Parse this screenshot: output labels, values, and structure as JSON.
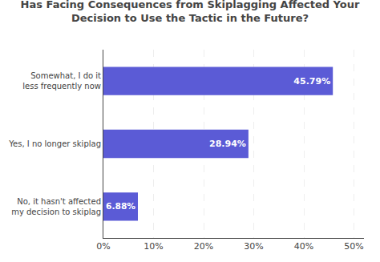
{
  "chart_data": {
    "type": "bar",
    "orientation": "horizontal",
    "title": "Has Facing Consequences from Skiplagging Affected Your\nDecision to Use the Tactic in the Future?",
    "categories": [
      "No, it hasn't affected\nmy decision to skiplag",
      "Yes, I no longer skiplag",
      "Somewhat, I do it\nless frequently now"
    ],
    "values": [
      6.88,
      28.94,
      45.79
    ],
    "value_labels": [
      "6.88%",
      "28.94%",
      "45.79%"
    ],
    "data_labels": true,
    "color": "#5b5bd6",
    "xlim": [
      0,
      52
    ],
    "xticks": [
      {
        "value": 0,
        "label": "0%"
      },
      {
        "value": 10,
        "label": "10%"
      },
      {
        "value": 20,
        "label": "20%"
      },
      {
        "value": 30,
        "label": "30%"
      },
      {
        "value": 40,
        "label": "40%"
      },
      {
        "value": 50,
        "label": "50%"
      }
    ],
    "grid": true
  }
}
